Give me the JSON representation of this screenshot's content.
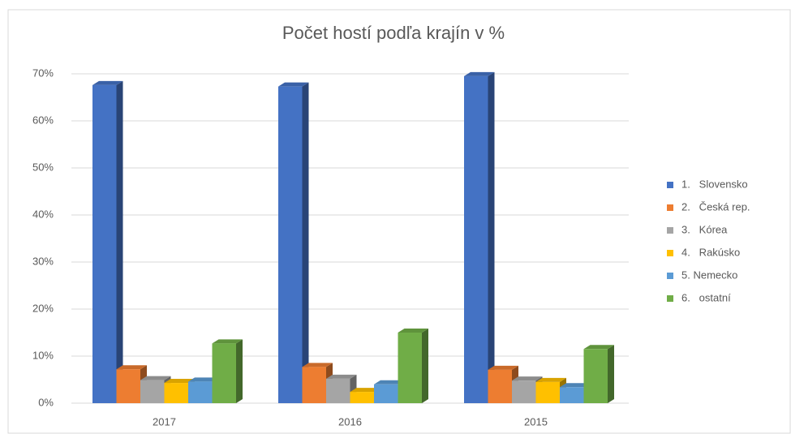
{
  "chart_data": {
    "type": "bar3d",
    "title": "Počet hostí podľa krajín v %",
    "categories": [
      "2017",
      "2016",
      "2015"
    ],
    "series": [
      {
        "name": "1.   Slovensko",
        "color": "#4472c4",
        "values": [
          67.6,
          67.3,
          69.5
        ]
      },
      {
        "name": "2.   Česká rep.",
        "color": "#ed7d31",
        "values": [
          7.2,
          7.7,
          7.1
        ]
      },
      {
        "name": "3.   Kórea",
        "color": "#a5a5a5",
        "values": [
          4.9,
          5.2,
          4.8
        ]
      },
      {
        "name": "4.   Rakúsko",
        "color": "#ffc000",
        "values": [
          4.3,
          2.4,
          4.5
        ]
      },
      {
        "name": "5. Nemecko",
        "color": "#5b9bd5",
        "values": [
          4.6,
          4.0,
          3.4
        ]
      },
      {
        "name": "6.   ostatní",
        "color": "#70ad47",
        "values": [
          12.7,
          15.0,
          11.5
        ]
      }
    ],
    "ylim": [
      0,
      70
    ],
    "yticks": [
      {
        "value": 0,
        "label": "0%"
      },
      {
        "value": 10,
        "label": "10%"
      },
      {
        "value": 20,
        "label": "20%"
      },
      {
        "value": 30,
        "label": "30%"
      },
      {
        "value": 40,
        "label": "40%"
      },
      {
        "value": 50,
        "label": "50%"
      },
      {
        "value": 60,
        "label": "60%"
      },
      {
        "value": 70,
        "label": "70%"
      }
    ],
    "grid": true,
    "legend": "right"
  }
}
